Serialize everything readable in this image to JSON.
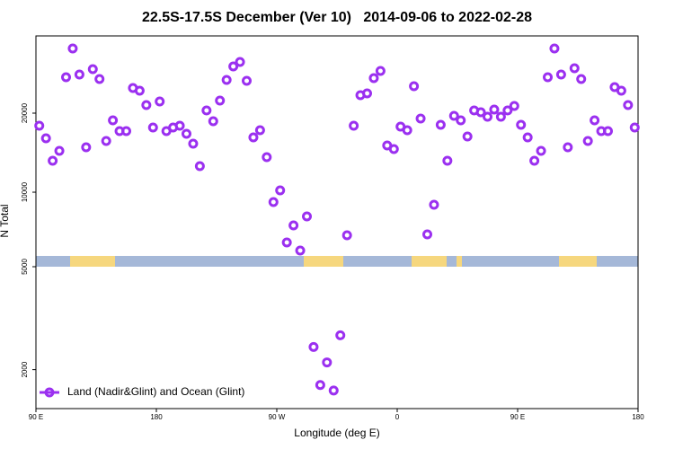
{
  "chart_data": {
    "type": "scatter",
    "title": "22.5S-17.5S December (Ver 10)   2014-09-06 to 2022-02-28",
    "xlabel": "Longitude (deg E)",
    "ylabel": "N Total",
    "xlim": [
      90,
      540
    ],
    "xticks": [
      {
        "value": 90,
        "label": "90 E"
      },
      180,
      {
        "value": 270,
        "label": "90 W"
      },
      {
        "value": 360,
        "label": "0"
      },
      {
        "value": 450,
        "label": "90 E"
      },
      {
        "value": 540,
        "label": "180"
      }
    ],
    "ylim": [
      574,
      29770
    ],
    "yticks": [
      10000,
      20000
    ],
    "x": [
      92.5,
      97.5,
      102.5,
      107.5,
      112.5,
      117.5,
      122.5,
      127.5,
      132.5,
      137.5,
      142.5,
      147.5,
      152.5,
      157.5,
      162.5,
      167.5,
      172.5,
      177.5,
      182.5,
      187.5,
      192.5,
      197.5,
      202.5,
      207.5,
      212.5,
      217.5,
      222.5,
      227.5,
      232.5,
      237.5,
      242.5,
      247.5,
      252.5,
      257.5,
      262.5,
      267.5,
      272.5,
      277.5,
      282.5,
      287.5,
      292.5,
      297.5,
      302.5,
      307.5,
      312.5,
      317.5,
      322.5,
      327.5,
      332.5,
      337.5,
      342.5,
      347.5,
      352.5,
      357.5,
      362.5,
      367.5,
      372.5,
      377.5,
      382.5,
      387.5,
      392.5,
      397.5,
      402.5,
      407.5,
      412.5,
      417.5,
      422.5,
      427.5,
      432.5,
      437.5,
      442.5,
      447.5,
      452.5,
      457.5,
      462.5,
      467.5,
      472.5,
      477.5,
      482.5,
      487.5,
      492.5,
      497.5,
      502.5,
      507.5,
      512.5,
      517.5,
      522.5,
      527.5,
      532.5,
      537.5
    ],
    "series": [
      {
        "name": "Land (Nadir&Glint) and Ocean (Glint)",
        "color": "#9b30f0",
        "values": [
          18410,
          16820,
          13980,
          15230,
          24540,
          28180,
          24880,
          15680,
          25570,
          24320,
          16480,
          19090,
          17730,
          17730,
          23180,
          22840,
          21020,
          18180,
          21480,
          17730,
          18180,
          18410,
          17390,
          16140,
          13300,
          20340,
          18980,
          21590,
          24200,
          25910,
          26480,
          24090,
          16930,
          17840,
          14430,
          8750,
          10230,
          3640,
          5800,
          2620,
          6940,
          null,
          null,
          null,
          null,
          null,
          4550,
          18410,
          22270,
          22500,
          24430,
          25340,
          15910,
          15460,
          18300,
          17840,
          23410,
          19320,
          4660,
          8410,
          18520,
          13980,
          19660,
          19090,
          17050,
          20340,
          20110,
          19550,
          20450,
          19550,
          20340,
          20910,
          18520,
          16930,
          13980,
          15230,
          24540,
          28180,
          24880,
          15680,
          25680,
          24320,
          16480,
          19090,
          17730,
          17730,
          23290,
          22840,
          21020,
          18180
        ]
      }
    ],
    "lower_panel": {
      "ylim": [
        1414,
        5000
      ],
      "yticks": [
        2000,
        5000
      ],
      "log_scale": true,
      "values": [
        null,
        null,
        null,
        null,
        null,
        null,
        null,
        null,
        null,
        null,
        null,
        null,
        null,
        null,
        null,
        null,
        null,
        null,
        null,
        null,
        null,
        null,
        null,
        null,
        null,
        null,
        null,
        null,
        null,
        null,
        null,
        null,
        null,
        null,
        null,
        null,
        null,
        null,
        null,
        null,
        null,
        2447,
        1744,
        2133,
        1661,
        2716,
        null,
        null,
        null,
        null,
        null,
        null,
        null,
        null,
        null,
        null,
        null,
        null,
        null,
        null,
        null,
        null,
        null,
        null,
        null,
        null,
        null,
        null,
        null,
        null,
        null,
        null,
        null,
        null,
        null,
        null,
        null,
        null,
        null,
        null,
        null,
        null,
        null,
        null,
        null,
        null,
        null,
        null,
        null,
        null
      ]
    },
    "legend": "lower-left"
  }
}
